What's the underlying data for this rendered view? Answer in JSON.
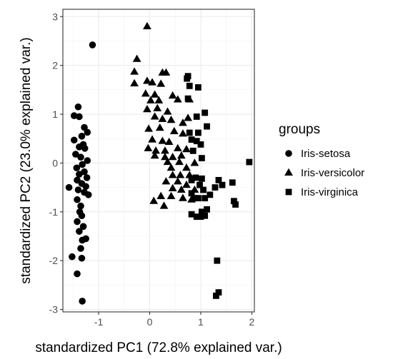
{
  "chart_data": {
    "type": "scatter",
    "xlabel": "standardized PC1 (72.8% explained var.)",
    "ylabel": "standardized PC2 (23.0% explained var.)",
    "xlim": [
      -1.7,
      2.05
    ],
    "ylim": [
      -3.05,
      3.15
    ],
    "x_ticks": [
      -1,
      0,
      1,
      2
    ],
    "y_ticks": [
      -3,
      -2,
      -1,
      0,
      1,
      2,
      3
    ],
    "x_tick_labels": [
      "-1",
      "0",
      "1",
      "2"
    ],
    "y_tick_labels": [
      "-3",
      "-2",
      "-1",
      "0",
      "1",
      "2",
      "3"
    ],
    "grid": true,
    "legend_title": "groups",
    "legend_position": "right",
    "series": [
      {
        "name": "Iris-setosa",
        "marker": "circle",
        "color": "#000000",
        "points": [
          [
            -1.12,
            2.42
          ],
          [
            -1.4,
            1.15
          ],
          [
            -1.48,
            0.97
          ],
          [
            -1.38,
            0.95
          ],
          [
            -1.28,
            0.73
          ],
          [
            -1.22,
            0.63
          ],
          [
            -1.33,
            0.55
          ],
          [
            -1.48,
            0.47
          ],
          [
            -1.3,
            0.38
          ],
          [
            -1.38,
            0.33
          ],
          [
            -1.27,
            0.3
          ],
          [
            -1.45,
            0.18
          ],
          [
            -1.35,
            0.12
          ],
          [
            -1.22,
            0.05
          ],
          [
            -1.32,
            -0.03
          ],
          [
            -1.43,
            -0.1
          ],
          [
            -1.28,
            -0.18
          ],
          [
            -1.38,
            -0.23
          ],
          [
            -1.23,
            -0.3
          ],
          [
            -1.42,
            -0.35
          ],
          [
            -1.33,
            -0.42
          ],
          [
            -1.25,
            -0.48
          ],
          [
            -1.58,
            -0.5
          ],
          [
            -1.4,
            -0.55
          ],
          [
            -1.28,
            -0.6
          ],
          [
            -1.2,
            -0.65
          ],
          [
            -1.42,
            -0.75
          ],
          [
            -1.35,
            -0.88
          ],
          [
            -1.37,
            -1.0
          ],
          [
            -1.33,
            -1.08
          ],
          [
            -1.42,
            -1.2
          ],
          [
            -1.3,
            -1.3
          ],
          [
            -1.38,
            -1.4
          ],
          [
            -1.32,
            -1.58
          ],
          [
            -1.25,
            -1.55
          ],
          [
            -1.35,
            -1.75
          ],
          [
            -1.52,
            -1.92
          ],
          [
            -1.33,
            -1.95
          ],
          [
            -1.42,
            -2.27
          ],
          [
            -1.32,
            -2.83
          ]
        ]
      },
      {
        "name": "Iris-versicolor",
        "marker": "triangle",
        "color": "#000000",
        "points": [
          [
            -0.05,
            2.8
          ],
          [
            -0.25,
            2.13
          ],
          [
            -0.3,
            1.87
          ],
          [
            -0.3,
            1.63
          ],
          [
            0.25,
            1.85
          ],
          [
            0.32,
            1.85
          ],
          [
            -0.05,
            1.68
          ],
          [
            0.05,
            1.65
          ],
          [
            0.22,
            1.62
          ],
          [
            -0.08,
            1.42
          ],
          [
            0.1,
            1.4
          ],
          [
            0.45,
            1.38
          ],
          [
            0.02,
            1.28
          ],
          [
            0.18,
            1.28
          ],
          [
            0.55,
            1.3
          ],
          [
            0.78,
            1.3
          ],
          [
            -0.05,
            1.1
          ],
          [
            0.15,
            1.12
          ],
          [
            0.35,
            1.05
          ],
          [
            0.1,
            0.95
          ],
          [
            0.25,
            0.9
          ],
          [
            0.42,
            0.88
          ],
          [
            0.75,
            0.92
          ],
          [
            0.65,
            0.82
          ],
          [
            -0.02,
            0.7
          ],
          [
            0.2,
            0.72
          ],
          [
            0.48,
            0.65
          ],
          [
            0.65,
            0.6
          ],
          [
            0.05,
            0.48
          ],
          [
            0.25,
            0.45
          ],
          [
            0.38,
            0.43
          ],
          [
            -0.03,
            0.3
          ],
          [
            0.12,
            0.25
          ],
          [
            0.3,
            0.25
          ],
          [
            0.55,
            0.3
          ],
          [
            0.72,
            0.28
          ],
          [
            0.1,
            0.15
          ],
          [
            0.3,
            0.12
          ],
          [
            0.45,
            0.12
          ],
          [
            0.62,
            0.15
          ],
          [
            0.35,
            0.02
          ],
          [
            0.58,
            0.02
          ],
          [
            0.42,
            -0.1
          ],
          [
            0.72,
            -0.1
          ],
          [
            0.88,
            0.0
          ],
          [
            0.45,
            -0.25
          ],
          [
            0.6,
            -0.25
          ],
          [
            0.78,
            -0.25
          ],
          [
            0.32,
            -0.38
          ],
          [
            0.55,
            -0.38
          ],
          [
            0.72,
            -0.45
          ],
          [
            0.45,
            -0.52
          ],
          [
            0.62,
            -0.55
          ],
          [
            0.88,
            -0.55
          ],
          [
            0.22,
            -0.68
          ],
          [
            0.42,
            -0.68
          ],
          [
            0.65,
            -0.72
          ],
          [
            0.82,
            -0.75
          ],
          [
            0.08,
            -0.78
          ],
          [
            0.28,
            -0.88
          ]
        ]
      },
      {
        "name": "Iris-virginica",
        "marker": "square",
        "color": "#000000",
        "points": [
          [
            0.75,
            1.78
          ],
          [
            0.73,
            1.73
          ],
          [
            0.78,
            1.58
          ],
          [
            0.95,
            1.55
          ],
          [
            0.75,
            1.32
          ],
          [
            1.08,
            1.03
          ],
          [
            0.92,
            0.95
          ],
          [
            1.12,
            0.75
          ],
          [
            0.95,
            0.62
          ],
          [
            0.78,
            0.62
          ],
          [
            0.82,
            0.48
          ],
          [
            0.92,
            0.45
          ],
          [
            1.0,
            0.38
          ],
          [
            0.85,
            0.25
          ],
          [
            1.02,
            0.1
          ],
          [
            1.95,
            0.02
          ],
          [
            0.9,
            -0.3
          ],
          [
            0.82,
            -0.35
          ],
          [
            1.02,
            -0.32
          ],
          [
            0.98,
            -0.45
          ],
          [
            1.35,
            -0.35
          ],
          [
            1.42,
            -0.45
          ],
          [
            1.62,
            -0.4
          ],
          [
            1.05,
            -0.55
          ],
          [
            0.82,
            -0.62
          ],
          [
            0.95,
            -0.72
          ],
          [
            1.08,
            -0.72
          ],
          [
            0.88,
            -0.72
          ],
          [
            1.18,
            -0.65
          ],
          [
            1.28,
            -0.5
          ],
          [
            1.65,
            -0.78
          ],
          [
            1.68,
            -0.85
          ],
          [
            0.82,
            -1.05
          ],
          [
            0.92,
            -1.1
          ],
          [
            1.02,
            -1.0
          ],
          [
            1.12,
            -0.95
          ],
          [
            1.08,
            -1.08
          ],
          [
            1.0,
            -1.1
          ],
          [
            1.32,
            -2.0
          ],
          [
            1.35,
            -2.65
          ],
          [
            1.3,
            -2.72
          ]
        ]
      }
    ]
  }
}
